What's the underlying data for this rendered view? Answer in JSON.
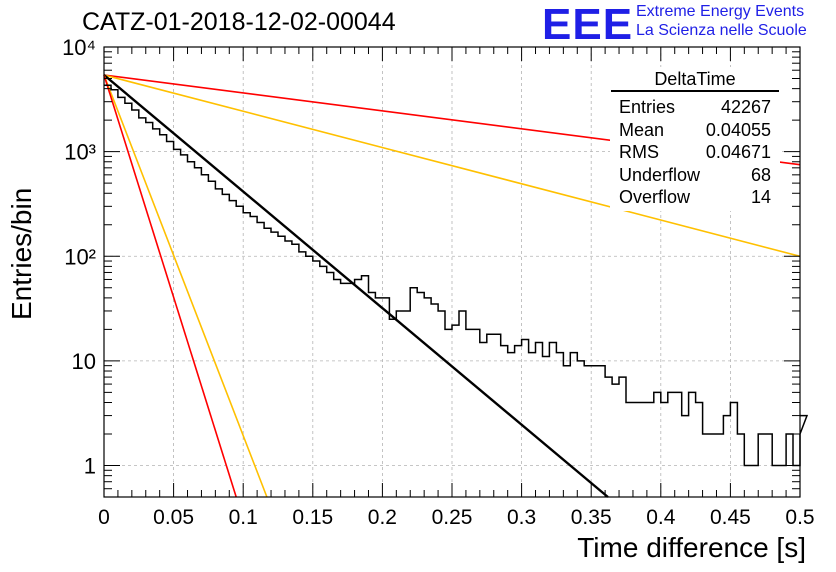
{
  "title": "CATZ-01-2018-12-02-00044",
  "logo": {
    "text": "EEE",
    "line1": "Extreme Energy Events",
    "line2": "La Scienza nelle Scuole",
    "color": "#1f1fe6"
  },
  "stats": {
    "title": "DeltaTime",
    "rows": [
      {
        "label": "Entries",
        "value": "42267"
      },
      {
        "label": "Mean",
        "value": "0.04055"
      },
      {
        "label": "RMS",
        "value": "0.04671"
      },
      {
        "label": "Underflow",
        "value": "68"
      },
      {
        "label": "Overflow",
        "value": "14"
      }
    ]
  },
  "chart_data": {
    "type": "line",
    "title": "CATZ-01-2018-12-02-00044",
    "xlabel": "Time difference [s]",
    "ylabel": "Entries/bin",
    "xlim": [
      0,
      0.5
    ],
    "ylim": [
      0.5,
      10000
    ],
    "yscale": "log",
    "grid": true,
    "x_ticks": [
      "0",
      "0.05",
      "0.1",
      "0.15",
      "0.2",
      "0.25",
      "0.3",
      "0.35",
      "0.4",
      "0.45",
      "0.5"
    ],
    "x_tick_values": [
      0,
      0.05,
      0.1,
      0.15,
      0.2,
      0.25,
      0.3,
      0.35,
      0.4,
      0.45,
      0.5
    ],
    "y_ticks": [
      "1",
      "10",
      "10²",
      "10³",
      "10⁴"
    ],
    "y_tick_values": [
      1,
      10,
      100,
      1000,
      10000
    ],
    "histogram": {
      "bin_width": 0.005,
      "color": "#000000",
      "values": [
        4300,
        3900,
        3300,
        2900,
        2500,
        2100,
        1900,
        1650,
        1450,
        1250,
        1050,
        930,
        800,
        700,
        600,
        520,
        440,
        390,
        340,
        300,
        260,
        240,
        210,
        185,
        170,
        155,
        140,
        130,
        110,
        100,
        90,
        80,
        70,
        60,
        55,
        55,
        60,
        65,
        45,
        40,
        40,
        25,
        30,
        30,
        50,
        45,
        40,
        35,
        30,
        20,
        22,
        30,
        20,
        20,
        15,
        18,
        18,
        14,
        12,
        14,
        16,
        12,
        15,
        11,
        15,
        12,
        9,
        12,
        10,
        9,
        9,
        9,
        7,
        6,
        7,
        4,
        4,
        4,
        4,
        5,
        4,
        5,
        5,
        3,
        5,
        4,
        2,
        2,
        2,
        3,
        4,
        2,
        1,
        1,
        2,
        2,
        1,
        1,
        2,
        1,
        2,
        3
      ]
    },
    "series": [
      {
        "color": "#ff0000",
        "x": [
          0,
          0.5
        ],
        "y": [
          5400,
          750
        ]
      },
      {
        "color": "#ffc000",
        "x": [
          0,
          0.5
        ],
        "y": [
          5400,
          100
        ]
      },
      {
        "color": "#000000",
        "x": [
          0,
          0.362
        ],
        "y": [
          5400,
          0.5
        ]
      },
      {
        "color": "#ffc000",
        "x": [
          0,
          0.117
        ],
        "y": [
          5400,
          0.5
        ]
      },
      {
        "color": "#ff0000",
        "x": [
          0,
          0.095
        ],
        "y": [
          5400,
          0.5
        ]
      }
    ]
  }
}
